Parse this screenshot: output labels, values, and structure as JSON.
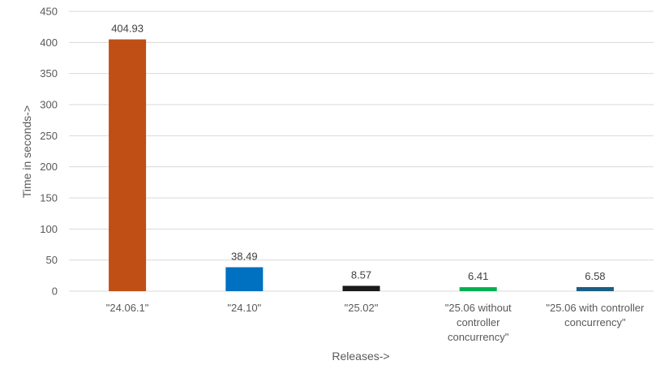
{
  "chart_data": {
    "type": "bar",
    "title": "",
    "xlabel": "Releases->",
    "ylabel": "Time in seconds->",
    "ylim": [
      0,
      450
    ],
    "yticks": [
      0,
      50,
      100,
      150,
      200,
      250,
      300,
      350,
      400,
      450
    ],
    "grid": true,
    "legend": "none",
    "categories": [
      [
        "\"24.06.1\""
      ],
      [
        "\"24.10\""
      ],
      [
        "\"25.02\""
      ],
      [
        "\"25.06 without",
        "controller",
        "concurrency\""
      ],
      [
        "\"25.06 with controller",
        "concurrency\""
      ]
    ],
    "values": [
      404.93,
      38.49,
      8.57,
      6.41,
      6.58
    ],
    "value_labels": [
      "404.93",
      "38.49",
      "8.57",
      "6.41",
      "6.58"
    ],
    "colors": [
      "#C04F15",
      "#0070C0",
      "#1A1A1A",
      "#00B050",
      "#1B5E86"
    ]
  }
}
